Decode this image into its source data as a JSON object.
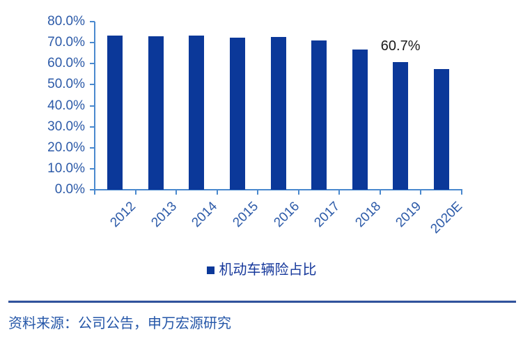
{
  "chart_data": {
    "type": "bar",
    "title": "",
    "categories": [
      "2012",
      "2013",
      "2014",
      "2015",
      "2016",
      "2017",
      "2018",
      "2019",
      "2020E"
    ],
    "series": [
      {
        "name": "机动车辆险占比",
        "values": [
          73.3,
          73.0,
          73.2,
          72.4,
          72.6,
          71.0,
          66.6,
          60.7,
          57.4
        ]
      }
    ],
    "ylim": [
      0,
      80
    ],
    "ytick_labels": [
      "0.0%",
      "10.0%",
      "20.0%",
      "30.0%",
      "40.0%",
      "50.0%",
      "60.0%",
      "70.0%",
      "80.0%"
    ],
    "xlabel": "",
    "ylabel": "",
    "grid": false,
    "legend_position": "bottom",
    "annotations": [
      {
        "category": "2019",
        "text": "60.7%"
      }
    ],
    "colors": {
      "bar": "#0B3899",
      "axis": "#4A89CE",
      "tick_label_text": "#2C5AA8",
      "annotation_text": "#1A1A1A",
      "legend_text": "#16389B"
    }
  },
  "source": {
    "text": "资料来源：公司公告，申万宏源研究",
    "text_color": "#2456A8",
    "divider_color": "#2A4A9B"
  }
}
